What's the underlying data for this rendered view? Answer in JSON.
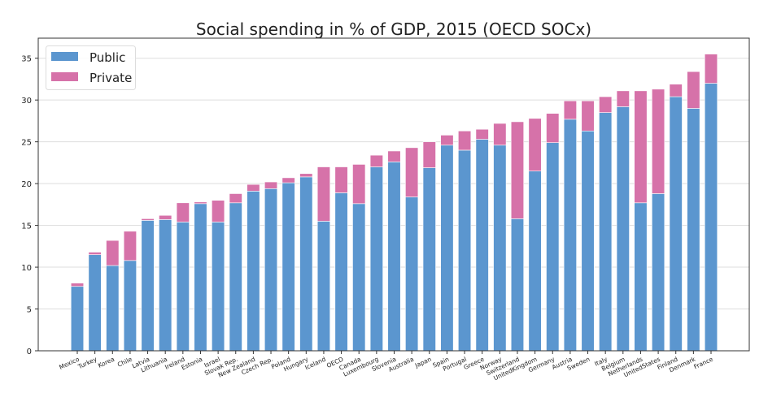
{
  "chart_data": {
    "type": "bar",
    "stacked": true,
    "title": "Social spending in % of GDP, 2015 (OECD SOCx)",
    "xlabel": "",
    "ylabel": "",
    "ylim": [
      0,
      37.4
    ],
    "yticks": [
      0,
      5,
      10,
      15,
      20,
      25,
      30,
      35
    ],
    "grid": "horizontal",
    "legend_position": "top-left",
    "categories": [
      "Mexico",
      "Turkey",
      "Korea",
      "Chile",
      "Latvia",
      "Lithuania",
      "Ireland",
      "Estonia",
      "Israel",
      "Slovak Rep.",
      "New Zealand",
      "Czech Rep.",
      "Poland",
      "Hungary",
      "Iceland",
      "OECD",
      "Canada",
      "Luxembourg",
      "Slovenia",
      "Australia",
      "Japan",
      "Spain",
      "Portugal",
      "Greece",
      "Norway",
      "Switzerland",
      "UnitedKingdom",
      "Germany",
      "Austria",
      "Sweden",
      "Italy",
      "Belgium",
      "Netherlands",
      "UnitedStates",
      "Finland",
      "Denmark",
      "France"
    ],
    "series": [
      {
        "name": "Public",
        "color": "#5b96cf",
        "values": [
          7.7,
          11.5,
          10.2,
          10.8,
          15.6,
          15.7,
          15.4,
          17.6,
          15.4,
          17.7,
          19.1,
          19.4,
          20.1,
          20.8,
          15.5,
          18.9,
          17.6,
          22.0,
          22.6,
          18.4,
          21.9,
          24.6,
          24.0,
          25.3,
          24.6,
          15.8,
          21.5,
          24.9,
          27.7,
          26.3,
          28.5,
          29.2,
          17.7,
          18.8,
          30.4,
          29.0,
          32.0
        ]
      },
      {
        "name": "Private",
        "color": "#d672a9",
        "values": [
          0.4,
          0.3,
          3.0,
          3.5,
          0.2,
          0.5,
          2.3,
          0.2,
          2.6,
          1.1,
          0.8,
          0.8,
          0.6,
          0.4,
          6.5,
          3.1,
          4.7,
          1.4,
          1.3,
          5.9,
          3.1,
          1.2,
          2.3,
          1.2,
          2.6,
          11.6,
          6.3,
          3.5,
          2.2,
          3.6,
          1.9,
          1.9,
          13.4,
          12.5,
          1.5,
          4.4,
          3.5
        ]
      }
    ]
  }
}
